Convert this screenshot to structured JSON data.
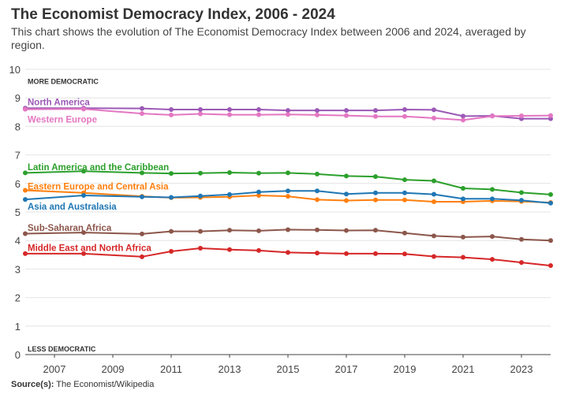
{
  "title": "The Economist Democracy Index, 2006 - 2024",
  "subtitle": "This chart shows the evolution of The Economist Democracy Index between 2006 and 2024, averaged by region.",
  "source_label": "Source(s):",
  "source_text": " The Economist/Wikipedia",
  "chart_data": {
    "type": "line",
    "title": "The Economist Democracy Index, 2006 - 2024",
    "xlabel": "",
    "ylabel": "",
    "x": [
      2006,
      2008,
      2010,
      2011,
      2012,
      2013,
      2014,
      2015,
      2016,
      2017,
      2018,
      2019,
      2020,
      2021,
      2022,
      2023,
      2024
    ],
    "xlim": [
      2006,
      2024
    ],
    "ylim": [
      0,
      10
    ],
    "x_ticks": [
      2007,
      2009,
      2011,
      2013,
      2015,
      2017,
      2019,
      2021,
      2023
    ],
    "y_ticks": [
      0,
      1,
      2,
      3,
      4,
      5,
      6,
      7,
      8,
      9,
      10
    ],
    "grid": true,
    "annotations": {
      "top": "MORE DEMOCRATIC",
      "bottom": "LESS DEMOCRATIC"
    },
    "series": [
      {
        "name": "North America",
        "color": "#9b59b6",
        "values": [
          8.64,
          8.64,
          8.63,
          8.59,
          8.59,
          8.59,
          8.59,
          8.56,
          8.56,
          8.56,
          8.56,
          8.59,
          8.58,
          8.36,
          8.37,
          8.27,
          8.27
        ]
      },
      {
        "name": "Western Europe",
        "color": "#e377c2",
        "values": [
          8.6,
          8.61,
          8.45,
          8.4,
          8.44,
          8.41,
          8.41,
          8.42,
          8.4,
          8.38,
          8.35,
          8.35,
          8.29,
          8.22,
          8.36,
          8.37,
          8.38
        ]
      },
      {
        "name": "Latin America and the Caribbean",
        "color": "#2ca02c",
        "values": [
          6.37,
          6.43,
          6.37,
          6.35,
          6.36,
          6.38,
          6.36,
          6.37,
          6.33,
          6.26,
          6.24,
          6.13,
          6.09,
          5.83,
          5.79,
          5.68,
          5.61
        ]
      },
      {
        "name": "Eastern Europe and Central Asia",
        "color": "#ff7f0e",
        "values": [
          5.76,
          5.67,
          5.55,
          5.5,
          5.51,
          5.53,
          5.58,
          5.55,
          5.43,
          5.4,
          5.42,
          5.42,
          5.36,
          5.36,
          5.39,
          5.37,
          5.33
        ]
      },
      {
        "name": "Asia and Australasia",
        "color": "#1f77b4",
        "values": [
          5.44,
          5.58,
          5.53,
          5.51,
          5.56,
          5.61,
          5.7,
          5.74,
          5.74,
          5.63,
          5.67,
          5.67,
          5.62,
          5.46,
          5.46,
          5.41,
          5.31
        ]
      },
      {
        "name": "Sub-Saharan Africa",
        "color": "#8c564b",
        "values": [
          4.24,
          4.28,
          4.23,
          4.32,
          4.32,
          4.36,
          4.34,
          4.38,
          4.37,
          4.35,
          4.36,
          4.26,
          4.16,
          4.12,
          4.14,
          4.04,
          4.0
        ]
      },
      {
        "name": "Middle East and North Africa",
        "color": "#d62728",
        "values": [
          3.54,
          3.54,
          3.43,
          3.62,
          3.73,
          3.68,
          3.65,
          3.58,
          3.56,
          3.54,
          3.54,
          3.53,
          3.44,
          3.41,
          3.34,
          3.23,
          3.12
        ]
      }
    ]
  }
}
